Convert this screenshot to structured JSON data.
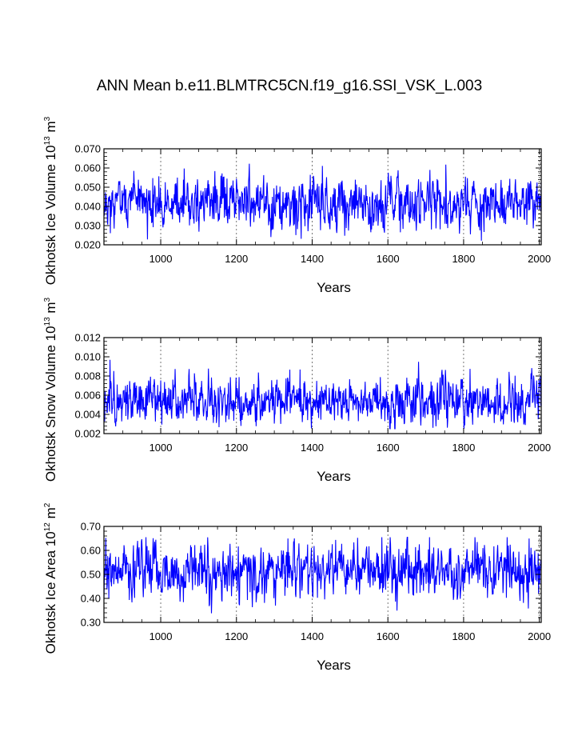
{
  "title": "ANN Mean b.e11.BLMTRC5CN.f19_g16.SSI_VSK_L.003",
  "series_color": "#0000ff",
  "chart_data": [
    {
      "type": "line",
      "name": "ice-volume",
      "ylabel_base": "Okhotsk Ice Volume 10",
      "ylabel_exp": "13",
      "ylabel_unit": " m",
      "ylabel_unit_exp": "3",
      "xlabel": "Years",
      "xlim": [
        850,
        2005
      ],
      "ylim": [
        0.02,
        0.07
      ],
      "xticks": [
        1000,
        1200,
        1400,
        1600,
        1800,
        2000
      ],
      "xtick_labels": [
        "1000",
        "1200",
        "1400",
        "1600",
        "1800",
        "2000"
      ],
      "yticks": [
        0.02,
        0.03,
        0.04,
        0.05,
        0.06,
        0.07
      ],
      "ytick_labels": [
        "0.020",
        "0.030",
        "0.040",
        "0.050",
        "0.060",
        "0.070"
      ],
      "x": [
        850,
        2005
      ],
      "series": [
        {
          "name": "Okhotsk Ice Volume",
          "mean": 0.0415,
          "sd": 0.0062,
          "min": 0.0215,
          "max": 0.065,
          "seed": 11
        }
      ]
    },
    {
      "type": "line",
      "name": "snow-volume",
      "ylabel_base": "Okhotsk Snow Volume 10",
      "ylabel_exp": "13",
      "ylabel_unit": " m",
      "ylabel_unit_exp": "3",
      "xlabel": "Years",
      "xlim": [
        850,
        2005
      ],
      "ylim": [
        0.002,
        0.012
      ],
      "xticks": [
        1000,
        1200,
        1400,
        1600,
        1800,
        2000
      ],
      "xtick_labels": [
        "1000",
        "1200",
        "1400",
        "1600",
        "1800",
        "2000"
      ],
      "yticks": [
        0.002,
        0.004,
        0.006,
        0.008,
        0.01,
        0.012
      ],
      "ytick_labels": [
        "0.002",
        "0.004",
        "0.006",
        "0.008",
        "0.010",
        "0.012"
      ],
      "x": [
        850,
        2005
      ],
      "series": [
        {
          "name": "Okhotsk Snow Volume",
          "mean": 0.0055,
          "sd": 0.0011,
          "min": 0.0025,
          "max": 0.011,
          "seed": 23
        }
      ]
    },
    {
      "type": "line",
      "name": "ice-area",
      "ylabel_base": "Okhotsk Ice Area 10",
      "ylabel_exp": "12",
      "ylabel_unit": " m",
      "ylabel_unit_exp": "2",
      "xlabel": "Years",
      "xlim": [
        850,
        2005
      ],
      "ylim": [
        0.3,
        0.7
      ],
      "xticks": [
        1000,
        1200,
        1400,
        1600,
        1800,
        2000
      ],
      "xtick_labels": [
        "1000",
        "1200",
        "1400",
        "1600",
        "1800",
        "2000"
      ],
      "yticks": [
        0.3,
        0.4,
        0.5,
        0.6,
        0.7
      ],
      "ytick_labels": [
        "0.30",
        "0.40",
        "0.50",
        "0.60",
        "0.70"
      ],
      "x": [
        850,
        2005
      ],
      "series": [
        {
          "name": "Okhotsk Ice Area",
          "mean": 0.515,
          "sd": 0.052,
          "min": 0.33,
          "max": 0.655,
          "seed": 37
        }
      ]
    }
  ]
}
